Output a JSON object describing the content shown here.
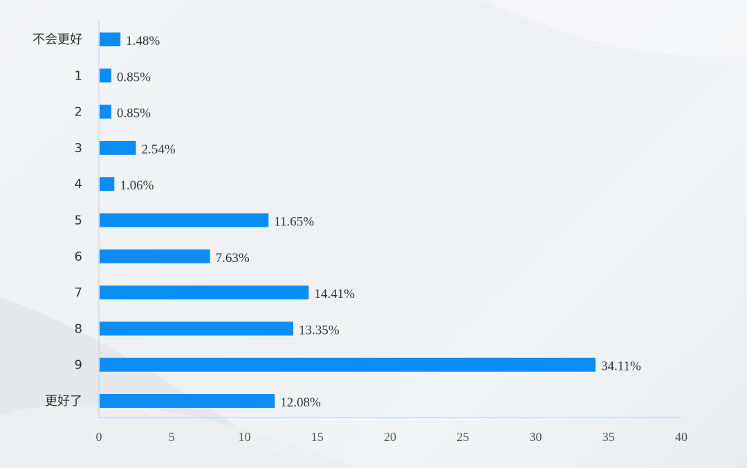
{
  "chart_data": {
    "type": "bar",
    "orientation": "horizontal",
    "categories": [
      "不会更好",
      "1",
      "2",
      "3",
      "4",
      "5",
      "6",
      "7",
      "8",
      "9",
      "更好了"
    ],
    "values": [
      1.48,
      0.85,
      0.85,
      2.54,
      1.06,
      11.65,
      7.63,
      14.41,
      13.35,
      34.11,
      12.08
    ],
    "data_labels": [
      "1.48%",
      "0.85%",
      "0.85%",
      "2.54%",
      "1.06%",
      "11.65%",
      "7.63%",
      "14.41%",
      "13.35%",
      "34.11%",
      "12.08%"
    ],
    "x_ticks": [
      "0",
      "5",
      "10",
      "15",
      "20",
      "25",
      "30",
      "35",
      "40"
    ],
    "xlim": [
      0,
      40
    ],
    "title": "",
    "xlabel": "",
    "ylabel": "",
    "grid": false,
    "legend": "none",
    "colors": {
      "bar": "#0a8ef5",
      "axis": "#c7d9f2",
      "text": "#333333"
    }
  }
}
